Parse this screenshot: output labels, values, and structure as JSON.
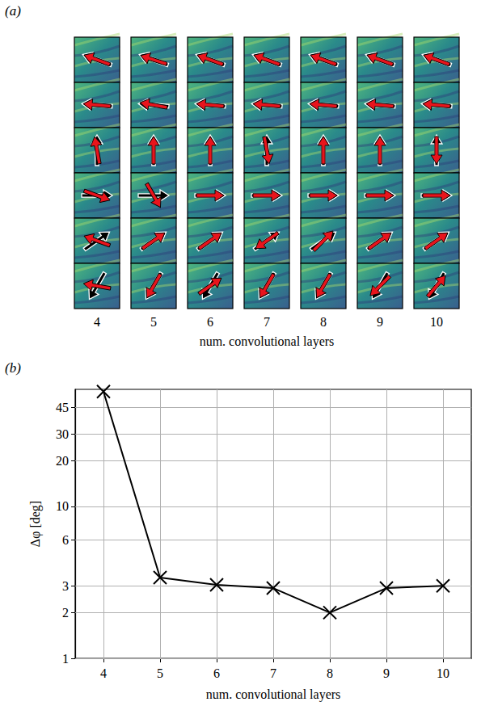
{
  "image_grid": {
    "panel_label": "(a)",
    "columns": [
      4,
      5,
      6,
      7,
      8,
      9,
      10
    ],
    "xlabel": "num. convolutional layers",
    "true_angles": [
      160,
      175,
      90,
      0,
      35,
      240
    ],
    "predicted_angles": [
      [
        160,
        162,
        160,
        160,
        160,
        160,
        160
      ],
      [
        175,
        170,
        175,
        175,
        175,
        175,
        175
      ],
      [
        100,
        90,
        90,
        280,
        90,
        90,
        270
      ],
      [
        -20,
        -60,
        0,
        0,
        0,
        0,
        0
      ],
      [
        160,
        35,
        35,
        215,
        45,
        35,
        35
      ],
      [
        170,
        240,
        35,
        240,
        240,
        225,
        50
      ]
    ]
  },
  "chart_data": {
    "type": "line",
    "panel_label": "(b)",
    "x_label": "num. convolutional layers",
    "y_label": "Δφ [deg]",
    "x": [
      4,
      5,
      6,
      7,
      8,
      9,
      10
    ],
    "values": [
      57,
      3.4,
      3.05,
      2.9,
      2.0,
      2.9,
      3.0
    ],
    "color": "#000000",
    "marker": "x",
    "line_style": "solid",
    "log": "y",
    "grid": true,
    "xlim": [
      3.5,
      10.5
    ],
    "xticks": [
      4,
      5,
      6,
      7,
      8,
      9,
      10
    ],
    "ylim": [
      1,
      59
    ],
    "yticks": [
      1,
      2,
      3,
      6,
      10,
      20,
      30,
      45
    ]
  }
}
